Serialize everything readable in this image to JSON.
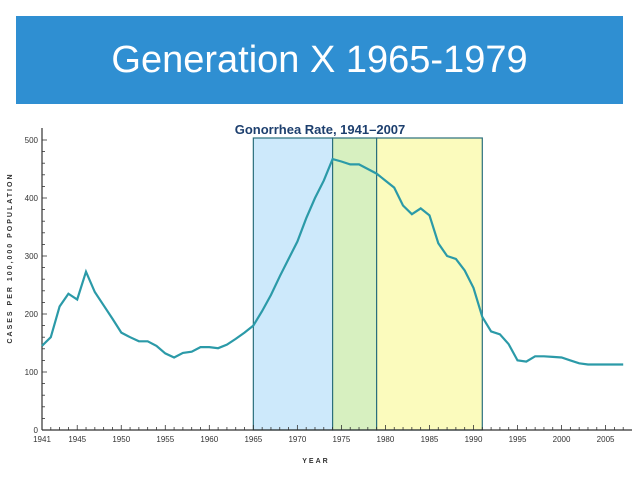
{
  "slide": {
    "title": "Generation X 1965-1979",
    "title_bar_color": "#2f8fd2"
  },
  "chart_data": {
    "type": "line",
    "title": "Gonorrhea Rate, 1941–2007",
    "xlabel": "YEAR",
    "ylabel": "CASES PER 100,000 POPULATION",
    "xlim": [
      1941,
      2008
    ],
    "ylim": [
      0,
      520
    ],
    "x_ticks": [
      1941,
      1945,
      1950,
      1955,
      1960,
      1965,
      1970,
      1975,
      1980,
      1985,
      1990,
      1995,
      2000,
      2005
    ],
    "y_ticks": [
      0,
      100,
      200,
      300,
      400,
      500
    ],
    "grid": false,
    "line_color": "#2b9aa8",
    "highlight_bands": [
      {
        "from": 1965,
        "to": 1974,
        "color": "#cde9fb"
      },
      {
        "from": 1974,
        "to": 1979,
        "color": "#d7f0c0"
      },
      {
        "from": 1979,
        "to": 1991,
        "color": "#fbfbbd"
      }
    ],
    "series": [
      {
        "x": [
          1941,
          1942,
          1943,
          1944,
          1945,
          1946,
          1947,
          1948,
          1949,
          1950,
          1951,
          1952,
          1953,
          1954,
          1955,
          1956,
          1957,
          1958,
          1959,
          1960,
          1961,
          1962,
          1963,
          1964,
          1965,
          1966,
          1967,
          1968,
          1969,
          1970,
          1971,
          1972,
          1973,
          1974,
          1975,
          1976,
          1977,
          1978,
          1979,
          1980,
          1981,
          1982,
          1983,
          1984,
          1985,
          1986,
          1987,
          1988,
          1989,
          1990,
          1991,
          1992,
          1993,
          1994,
          1995,
          1996,
          1997,
          1998,
          1999,
          2000,
          2001,
          2002,
          2003,
          2004,
          2005,
          2006,
          2007
        ],
        "values": [
          145,
          160,
          213,
          235,
          225,
          273,
          238,
          215,
          192,
          168,
          160,
          153,
          153,
          145,
          132,
          125,
          133,
          135,
          143,
          143,
          141,
          147,
          157,
          168,
          180,
          205,
          233,
          265,
          295,
          325,
          365,
          400,
          430,
          467,
          463,
          458,
          458,
          450,
          442,
          430,
          418,
          387,
          372,
          382,
          370,
          322,
          300,
          295,
          275,
          245,
          195,
          170,
          165,
          148,
          120,
          118,
          127,
          127,
          126,
          125,
          120,
          115,
          113,
          113,
          113,
          113,
          113
        ]
      }
    ]
  }
}
